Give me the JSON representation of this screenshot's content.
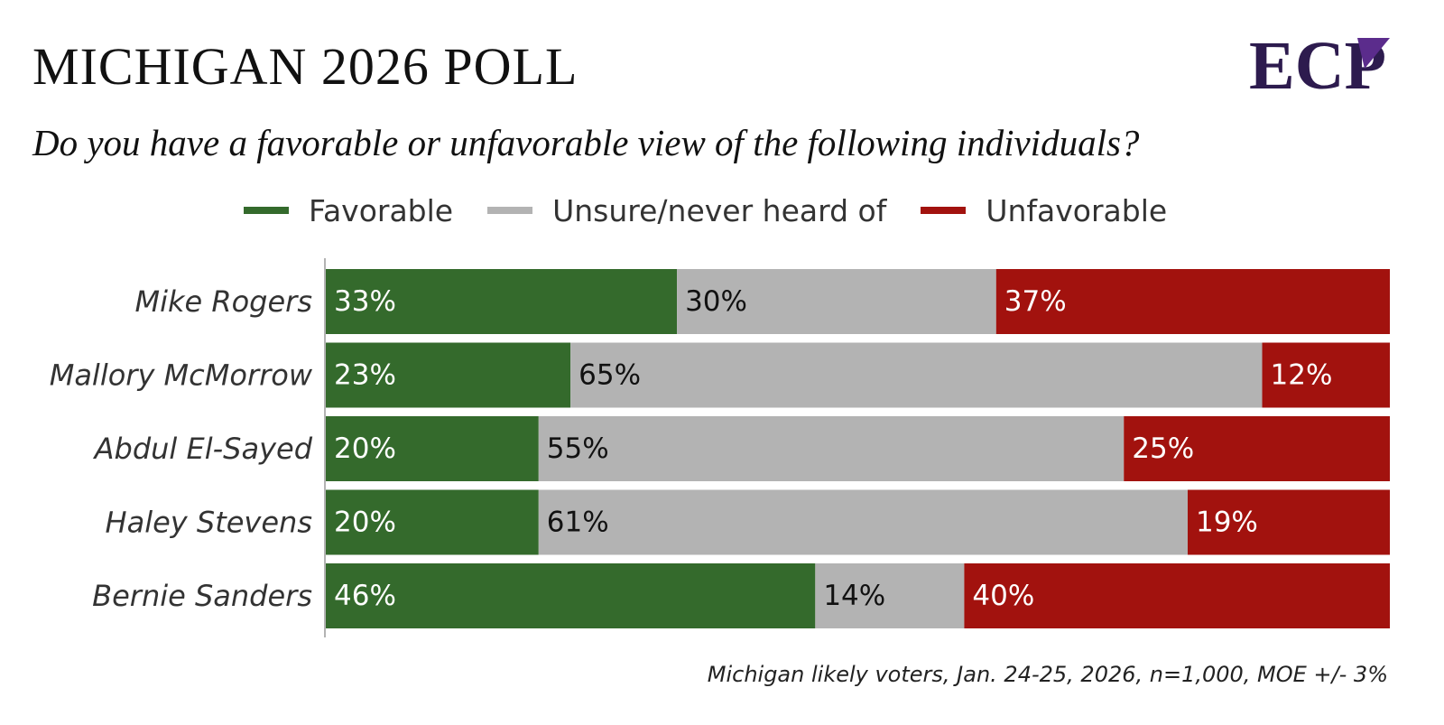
{
  "title": "MICHIGAN 2026 POLL",
  "subtitle": "Do you have a favorable or unfavorable view of the following individuals?",
  "footnote": "Michigan likely voters, Jan. 24-25, 2026, n=1,000, MOE +/- 3%",
  "logo": {
    "text": "ECP",
    "colors": [
      "#2d1b4e",
      "#5b2c8c"
    ]
  },
  "legend": [
    {
      "label": "Favorable",
      "color": "#346a2c"
    },
    {
      "label": "Unsure/never heard of",
      "color": "#b3b3b3"
    },
    {
      "label": "Unfavorable",
      "color": "#a2120e"
    }
  ],
  "chart_data": {
    "type": "bar",
    "orientation": "horizontal",
    "stacked": true,
    "categories": [
      "Mike Rogers",
      "Mallory McMorrow",
      "Abdul El-Sayed",
      "Haley Stevens",
      "Bernie Sanders"
    ],
    "series": [
      {
        "name": "Favorable",
        "values": [
          33,
          23,
          20,
          20,
          46
        ],
        "color": "#346a2c",
        "label_color": "#ffffff"
      },
      {
        "name": "Unsure/never heard of",
        "values": [
          30,
          65,
          55,
          61,
          14
        ],
        "color": "#b3b3b3",
        "label_color": "#111111"
      },
      {
        "name": "Unfavorable",
        "values": [
          37,
          12,
          25,
          19,
          40
        ],
        "color": "#a2120e",
        "label_color": "#ffffff"
      }
    ],
    "value_suffix": "%",
    "xlim": [
      0,
      100
    ],
    "grid": false,
    "legend_position": "top"
  }
}
